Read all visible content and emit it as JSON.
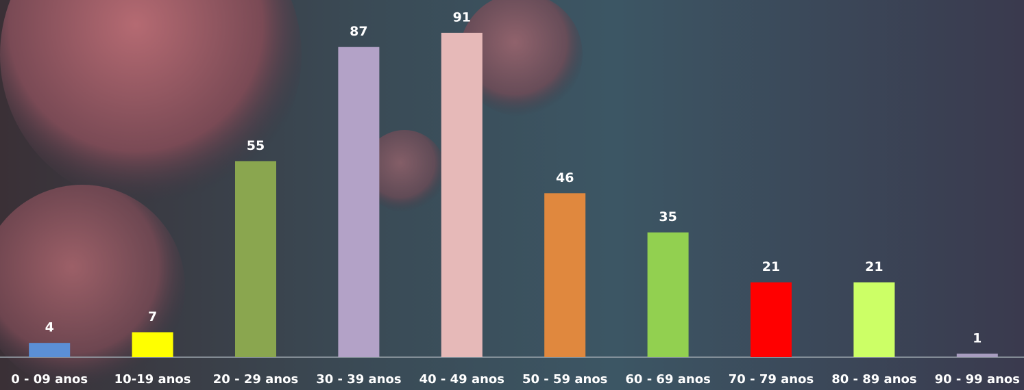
{
  "chart_data": {
    "type": "bar",
    "categories": [
      "0 - 09 anos",
      "10-19 anos",
      "20 - 29 anos",
      "30 - 39 anos",
      "40 - 49 anos",
      "50 - 59 anos",
      "60 - 69 anos",
      "70 - 79 anos",
      "80 - 89 anos",
      "90 - 99 anos"
    ],
    "values": [
      4,
      7,
      55,
      87,
      91,
      46,
      35,
      21,
      21,
      1
    ],
    "colors": [
      "#5b8fd6",
      "#ffff00",
      "#8aa64f",
      "#b3a2c7",
      "#e6b9b8",
      "#e0883e",
      "#92d050",
      "#ff0000",
      "#ccff66",
      "#a89dc0"
    ],
    "ylim": [
      0,
      100
    ]
  }
}
